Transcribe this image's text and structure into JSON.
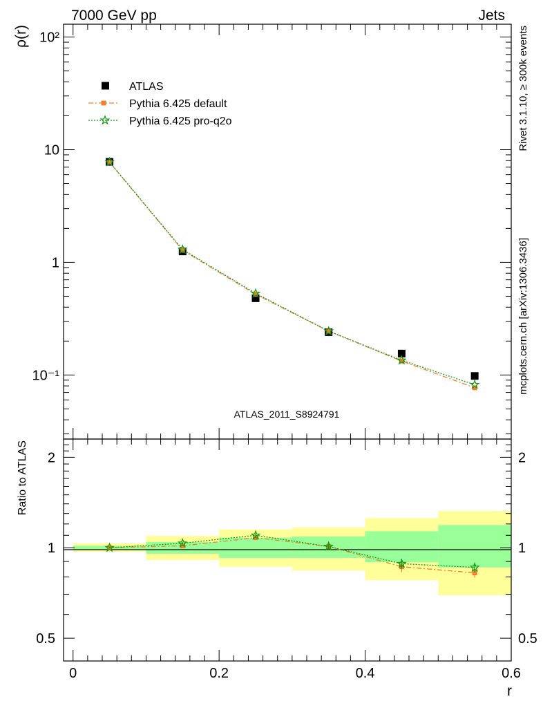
{
  "header": {
    "left_title": "7000 GeV pp",
    "right_title": "Jets"
  },
  "side_labels": {
    "rivet": "Rivet 3.1.10, ≥ 300k events",
    "source": "mcplots.cern.ch [arXiv:1306.3436]"
  },
  "watermark": "ATLAS_2011_S8924791",
  "colors": {
    "atlas": "#000000",
    "default": "#ee8030",
    "proq2o": "#119911",
    "band_inner": "#99ff99",
    "band_outer": "#ffff99"
  },
  "chart_data": [
    {
      "type": "scatter",
      "panel": "main",
      "ylabel": "ρ(r)",
      "yscale": "log",
      "ylim": [
        0.027,
        130
      ],
      "xlim": [
        -0.013,
        0.6
      ],
      "ytick_labels": [
        "10⁻¹",
        "1",
        "10",
        "10²"
      ],
      "legend_position": "top-left",
      "x": [
        0.05,
        0.15,
        0.25,
        0.35,
        0.45,
        0.55
      ],
      "series": [
        {
          "name": "ATLAS",
          "style": "markers",
          "values": [
            7.8,
            1.25,
            0.48,
            0.24,
            0.155,
            0.098
          ]
        },
        {
          "name": "Pythia 6.425 default",
          "style": "dash-dot",
          "values": [
            7.75,
            1.28,
            0.52,
            0.245,
            0.133,
            0.077
          ]
        },
        {
          "name": "Pythia 6.425 pro-q2o",
          "style": "dotted",
          "values": [
            7.75,
            1.3,
            0.53,
            0.245,
            0.135,
            0.082
          ]
        }
      ]
    },
    {
      "type": "line",
      "panel": "ratio",
      "ylabel": "Ratio to ATLAS",
      "xlabel": "r",
      "ylim": [
        0.42,
        2.3
      ],
      "xlim": [
        -0.013,
        0.6
      ],
      "ytick_labels": [
        "0.5",
        "1",
        "2"
      ],
      "xtick_labels": [
        "0",
        "0.2",
        "0.4",
        "0.6"
      ],
      "x": [
        0.05,
        0.15,
        0.25,
        0.35,
        0.45,
        0.55
      ],
      "bin_edges": [
        0.0,
        0.1,
        0.2,
        0.3,
        0.4,
        0.5,
        0.6
      ],
      "bands": {
        "inner": {
          "low": [
            0.985,
            0.955,
            0.925,
            0.925,
            0.895,
            0.86
          ],
          "high": [
            1.015,
            1.045,
            1.08,
            1.09,
            1.135,
            1.19
          ]
        },
        "outer": {
          "low": [
            0.97,
            0.91,
            0.865,
            0.84,
            0.78,
            0.695
          ],
          "high": [
            1.035,
            1.095,
            1.15,
            1.17,
            1.255,
            1.325
          ]
        }
      },
      "series": [
        {
          "name": "Pythia 6.425 default",
          "style": "dash-dot",
          "values": [
            1.0,
            1.015,
            1.08,
            1.01,
            0.865,
            0.825
          ],
          "errors": [
            0.005,
            0.01,
            0.015,
            0.025,
            0.035,
            0.03
          ]
        },
        {
          "name": "Pythia 6.425 pro-q2o",
          "style": "dotted",
          "values": [
            1.0,
            1.035,
            1.1,
            1.01,
            0.885,
            0.86
          ],
          "errors": [
            0.005,
            0.01,
            0.015,
            0.025,
            0.035,
            0.03
          ]
        }
      ]
    }
  ]
}
